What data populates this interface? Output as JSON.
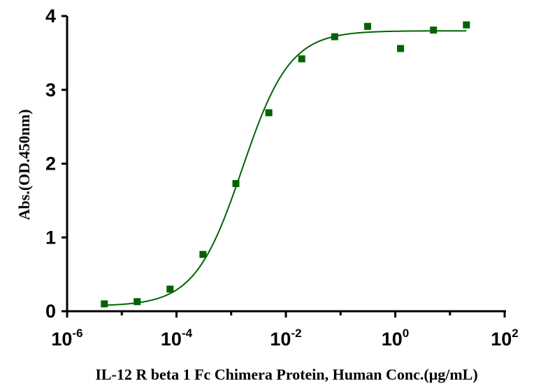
{
  "chart_data": {
    "type": "scatter",
    "xlabel": "IL-12 R beta 1 Fc Chimera Protein, Human Conc.(μg/mL)",
    "ylabel": "Abs.(OD.450nm)",
    "x_scale": "log",
    "xlim": [
      1e-06,
      100
    ],
    "ylim": [
      0,
      4
    ],
    "x_ticks": [
      {
        "base": "10",
        "exp": "-6",
        "value": 1e-06
      },
      {
        "base": "10",
        "exp": "-4",
        "value": 0.0001
      },
      {
        "base": "10",
        "exp": "-2",
        "value": 0.01
      },
      {
        "base": "10",
        "exp": "0",
        "value": 1
      },
      {
        "base": "10",
        "exp": "2",
        "value": 100
      }
    ],
    "y_ticks": [
      {
        "label": "0",
        "value": 0
      },
      {
        "label": "1",
        "value": 1
      },
      {
        "label": "2",
        "value": 2
      },
      {
        "label": "3",
        "value": 3
      },
      {
        "label": "4",
        "value": 4
      }
    ],
    "grid": false,
    "marker_color": "#006400",
    "curve_color": "#006400",
    "series": [
      {
        "x": [
          4.8e-06,
          1.91e-05,
          7.63e-05,
          0.000305,
          0.00122,
          0.00488,
          0.0195,
          0.0781,
          0.3125,
          1.25,
          5,
          20
        ],
        "y": [
          0.1,
          0.13,
          0.3,
          0.77,
          1.73,
          2.69,
          3.42,
          3.72,
          3.86,
          3.56,
          3.81,
          3.88
        ]
      }
    ],
    "fit_curve": {
      "model": "4PL",
      "bottom": 0.07,
      "top": 3.8,
      "ec50": 0.0016,
      "hill": 1.0,
      "x_range": [
        4.8e-06,
        20
      ]
    }
  }
}
